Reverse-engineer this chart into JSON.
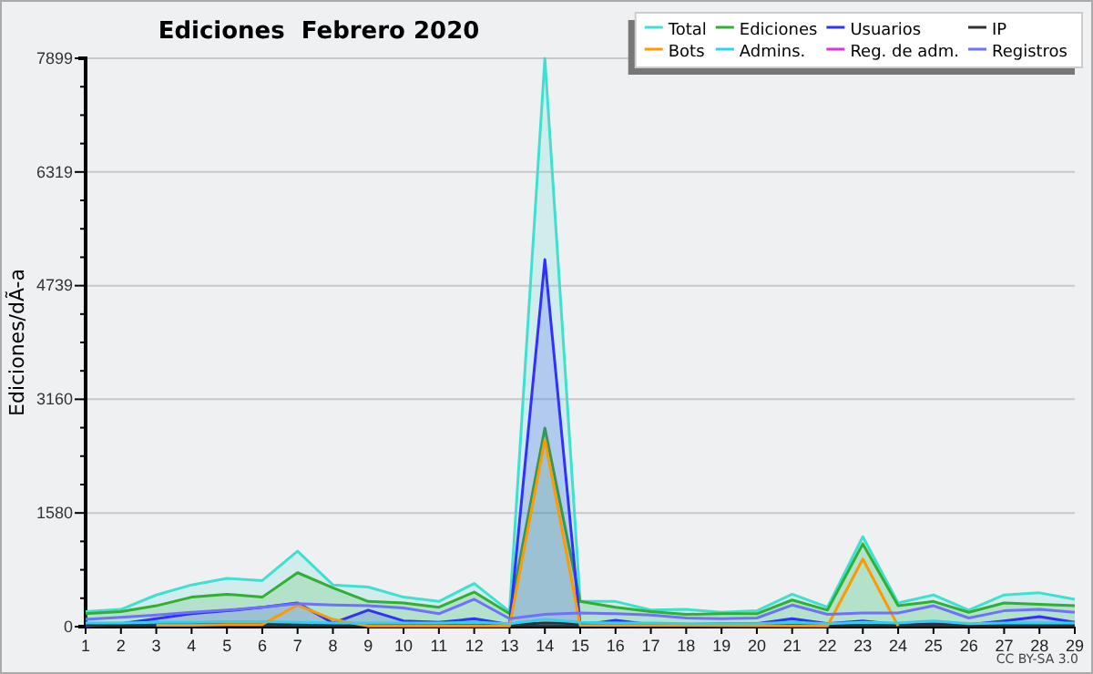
{
  "chart_data": {
    "type": "line",
    "title": "Ediciones  Febrero 2020",
    "ylabel": "Ediciones/dÃ-a",
    "annotations": [
      "CC BY-SA 3.0"
    ],
    "x": [
      1,
      2,
      3,
      4,
      5,
      6,
      7,
      8,
      9,
      10,
      11,
      12,
      13,
      14,
      15,
      16,
      17,
      18,
      19,
      20,
      21,
      22,
      23,
      24,
      25,
      26,
      27,
      28,
      29
    ],
    "xlim": [
      1,
      29
    ],
    "xticks": [
      1,
      2,
      3,
      4,
      5,
      6,
      7,
      8,
      9,
      10,
      11,
      12,
      13,
      14,
      15,
      16,
      17,
      18,
      19,
      20,
      21,
      22,
      23,
      24,
      25,
      26,
      27,
      28,
      29
    ],
    "ylim": [
      0,
      7899
    ],
    "yticks": [
      0,
      {
        "value": 395,
        "label": null
      },
      {
        "value": 790,
        "label": null
      },
      {
        "value": 1185,
        "label": null
      },
      1580,
      {
        "value": 1975,
        "label": null
      },
      {
        "value": 2370,
        "label": null
      },
      {
        "value": 2765,
        "label": null
      },
      3160,
      {
        "value": 3555,
        "label": null
      },
      {
        "value": 3950,
        "label": null
      },
      {
        "value": 4344,
        "label": null
      },
      4739,
      {
        "value": 5134,
        "label": null
      },
      {
        "value": 5529,
        "label": null
      },
      {
        "value": 5924,
        "label": null
      },
      6319,
      {
        "value": 6714,
        "label": null
      },
      {
        "value": 7109,
        "label": null
      },
      {
        "value": 7504,
        "label": null
      },
      7899
    ],
    "grid": "y",
    "legend": "top right",
    "marker": "none",
    "line_style": "solid",
    "series": [
      {
        "name": "Total",
        "type": "area",
        "color": "#40e0d0",
        "values": [
          210,
          240,
          440,
          580,
          670,
          640,
          1050,
          580,
          550,
          410,
          350,
          600,
          210,
          7899,
          350,
          350,
          230,
          240,
          200,
          220,
          450,
          270,
          1250,
          330,
          440,
          230,
          440,
          470,
          380
        ]
      },
      {
        "name": "Ediciones",
        "type": "area",
        "color": "#30b030",
        "values": [
          180,
          210,
          290,
          410,
          450,
          410,
          750,
          540,
          350,
          330,
          270,
          480,
          180,
          2760,
          350,
          270,
          210,
          170,
          180,
          180,
          370,
          230,
          1150,
          290,
          350,
          200,
          330,
          310,
          290
        ]
      },
      {
        "name": "Usuarios",
        "type": "area",
        "color": "#3030ff",
        "values": [
          10,
          40,
          110,
          180,
          220,
          270,
          330,
          50,
          230,
          80,
          60,
          110,
          30,
          5100,
          20,
          90,
          30,
          30,
          40,
          40,
          110,
          40,
          80,
          30,
          40,
          30,
          80,
          140,
          60
        ]
      },
      {
        "name": "IP",
        "color": "#303030",
        "values": [
          30,
          30,
          40,
          40,
          50,
          40,
          40,
          40,
          30,
          30,
          40,
          50,
          30,
          50,
          40,
          30,
          30,
          30,
          30,
          30,
          40,
          30,
          40,
          30,
          30,
          30,
          40,
          40,
          30
        ]
      },
      {
        "name": "Bots",
        "color": "#ff9900",
        "values": [
          null,
          null,
          20,
          20,
          30,
          30,
          300,
          100,
          10,
          null,
          null,
          null,
          10,
          2600,
          20,
          null,
          null,
          null,
          null,
          null,
          null,
          10,
          940,
          10,
          null,
          null,
          null,
          null,
          null
        ]
      },
      {
        "name": "Admins.",
        "color": "#30d0f0",
        "values": [
          50,
          50,
          60,
          60,
          70,
          70,
          60,
          50,
          50,
          50,
          50,
          60,
          40,
          100,
          60,
          50,
          50,
          40,
          40,
          40,
          60,
          40,
          60,
          50,
          80,
          40,
          50,
          50,
          50
        ]
      },
      {
        "name": "Reg. de adm.",
        "color": "#e030e0",
        "values": [
          null,
          null,
          null,
          null,
          null,
          null,
          null,
          null,
          null,
          null,
          null,
          null,
          null,
          null,
          null,
          null,
          null,
          null,
          null,
          null,
          null,
          null,
          null,
          null,
          null,
          null,
          null,
          null,
          null
        ]
      },
      {
        "name": "Registros",
        "color": "#7070ff",
        "values": [
          100,
          130,
          160,
          200,
          230,
          270,
          320,
          300,
          290,
          260,
          180,
          380,
          110,
          170,
          190,
          180,
          160,
          120,
          110,
          120,
          300,
          170,
          190,
          190,
          290,
          120,
          220,
          240,
          200
        ]
      }
    ]
  }
}
